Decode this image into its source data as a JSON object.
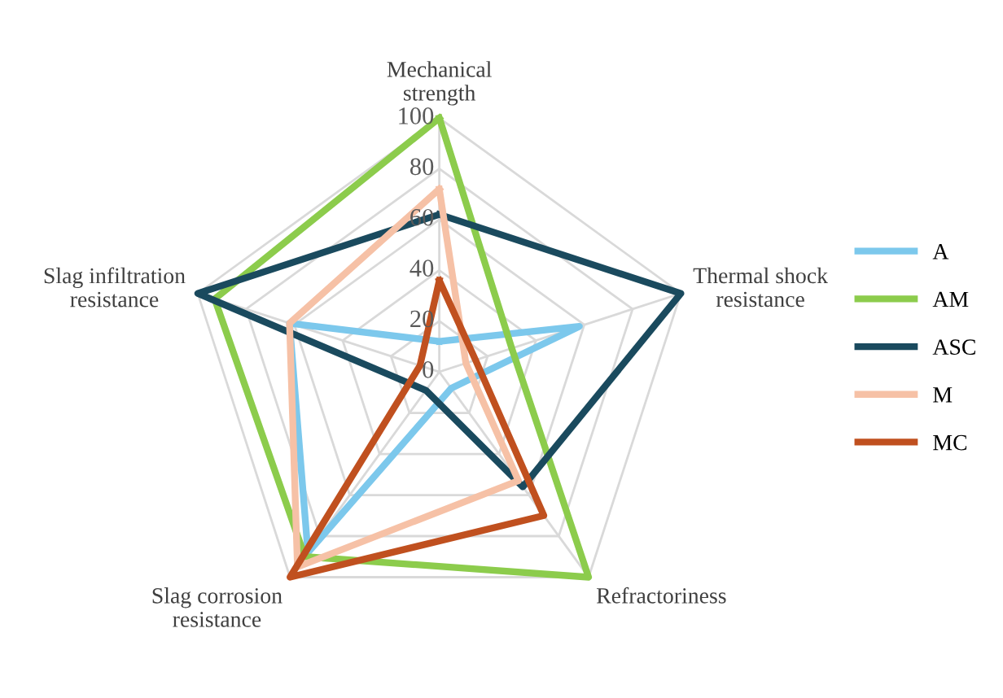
{
  "chart_data": {
    "type": "radar",
    "categories": [
      "Mechanical\nstrength",
      "Thermal shock\nresistance",
      "Refractoriness",
      "Slag corrosion\nresistance",
      "Slag infiltration\nresistance"
    ],
    "series": [
      {
        "name": "A",
        "color": "#7cc8ec",
        "values": [
          12,
          58,
          8,
          88,
          62
        ]
      },
      {
        "name": "AM",
        "color": "#8ccc4c",
        "values": [
          100,
          30,
          100,
          90,
          93
        ]
      },
      {
        "name": "ASC",
        "color": "#1a4a5e",
        "values": [
          62,
          100,
          56,
          9,
          100
        ]
      },
      {
        "name": "M",
        "color": "#f6c1a6",
        "values": [
          72,
          11,
          53,
          95,
          62
        ]
      },
      {
        "name": "MC",
        "color": "#c0501f",
        "values": [
          36,
          15,
          70,
          100,
          8
        ]
      }
    ],
    "ylim": [
      0,
      100
    ],
    "yticks": [
      0,
      20,
      40,
      60,
      80,
      100
    ],
    "grid": true,
    "legend": "right",
    "marker": "none",
    "line_style": "solid"
  }
}
